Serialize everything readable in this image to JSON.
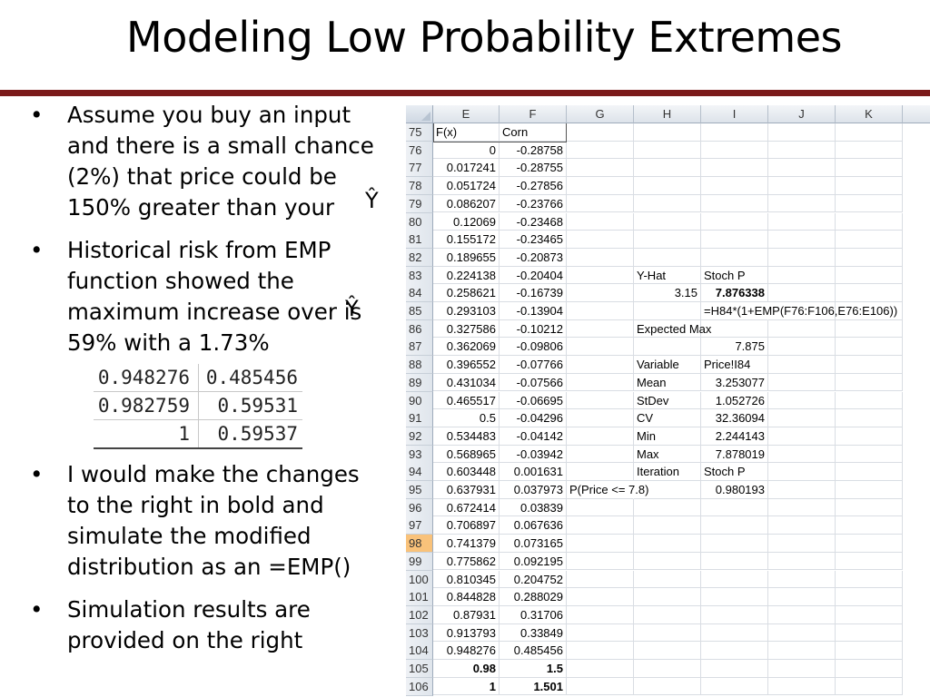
{
  "title": "Modeling Low Probability Extremes",
  "bullets": [
    {
      "text": "Assume you buy an input and there is a small chance (2%) that price could be 150% greater than your"
    },
    {
      "text": "Historical risk from EMP function showed the maximum increase over  is 59% with a 1.73%"
    },
    {
      "text": "I would make the changes to the right in bold and simulate the modified distribution as an =EMP()"
    },
    {
      "text": "Simulation results are provided on the right"
    }
  ],
  "yhat_symbol": "Ŷ",
  "mini_table": [
    [
      "0.948276",
      "0.485456"
    ],
    [
      "0.982759",
      "0.59531"
    ],
    [
      "1",
      "0.59537"
    ]
  ],
  "sheet": {
    "columns": [
      "E",
      "F",
      "G",
      "H",
      "I",
      "J",
      "K"
    ],
    "rows": [
      {
        "n": "75",
        "E": "F(x)",
        "F": "Corn",
        "G": "",
        "H": "",
        "I": ""
      },
      {
        "n": "76",
        "E": "0",
        "F": "-0.28758",
        "G": "",
        "H": "",
        "I": ""
      },
      {
        "n": "77",
        "E": "0.017241",
        "F": "-0.28755",
        "G": "",
        "H": "",
        "I": ""
      },
      {
        "n": "78",
        "E": "0.051724",
        "F": "-0.27856",
        "G": "",
        "H": "",
        "I": ""
      },
      {
        "n": "79",
        "E": "0.086207",
        "F": "-0.23766",
        "G": "",
        "H": "",
        "I": ""
      },
      {
        "n": "80",
        "E": "0.12069",
        "F": "-0.23468",
        "G": "",
        "H": "",
        "I": ""
      },
      {
        "n": "81",
        "E": "0.155172",
        "F": "-0.23465",
        "G": "",
        "H": "",
        "I": ""
      },
      {
        "n": "82",
        "E": "0.189655",
        "F": "-0.20873",
        "G": "",
        "H": "",
        "I": ""
      },
      {
        "n": "83",
        "E": "0.224138",
        "F": "-0.20404",
        "G": "",
        "H": "Y-Hat",
        "I": "Stoch P"
      },
      {
        "n": "84",
        "E": "0.258621",
        "F": "-0.16739",
        "G": "",
        "H": "3.15",
        "I": "7.876338"
      },
      {
        "n": "85",
        "E": "0.293103",
        "F": "-0.13904",
        "G": "",
        "H": "",
        "I": "=H84*(1+EMP(F76:F106,E76:E106))"
      },
      {
        "n": "86",
        "E": "0.327586",
        "F": "-0.10212",
        "G": "",
        "H": "Expected Max",
        "I": ""
      },
      {
        "n": "87",
        "E": "0.362069",
        "F": "-0.09806",
        "G": "",
        "H": "",
        "I": "7.875"
      },
      {
        "n": "88",
        "E": "0.396552",
        "F": "-0.07766",
        "G": "",
        "H": "Variable",
        "I": "Price!I84"
      },
      {
        "n": "89",
        "E": "0.431034",
        "F": "-0.07566",
        "G": "",
        "H": "Mean",
        "I": "3.253077"
      },
      {
        "n": "90",
        "E": "0.465517",
        "F": "-0.06695",
        "G": "",
        "H": "StDev",
        "I": "1.052726"
      },
      {
        "n": "91",
        "E": "0.5",
        "F": "-0.04296",
        "G": "",
        "H": "CV",
        "I": "32.36094"
      },
      {
        "n": "92",
        "E": "0.534483",
        "F": "-0.04142",
        "G": "",
        "H": "Min",
        "I": "2.244143"
      },
      {
        "n": "93",
        "E": "0.568965",
        "F": "-0.03942",
        "G": "",
        "H": "Max",
        "I": "7.878019"
      },
      {
        "n": "94",
        "E": "0.603448",
        "F": "0.001631",
        "G": "",
        "H": "Iteration",
        "I": "Stoch P"
      },
      {
        "n": "95",
        "E": "0.637931",
        "F": "0.037973",
        "G": "P(Price <= 7.8)",
        "H": "",
        "I": "0.980193"
      },
      {
        "n": "96",
        "E": "0.672414",
        "F": "0.03839",
        "G": "",
        "H": "",
        "I": ""
      },
      {
        "n": "97",
        "E": "0.706897",
        "F": "0.067636",
        "G": "",
        "H": "",
        "I": ""
      },
      {
        "n": "98",
        "E": "0.741379",
        "F": "0.073165",
        "G": "",
        "H": "",
        "I": ""
      },
      {
        "n": "99",
        "E": "0.775862",
        "F": "0.092195",
        "G": "",
        "H": "",
        "I": ""
      },
      {
        "n": "100",
        "E": "0.810345",
        "F": "0.204752",
        "G": "",
        "H": "",
        "I": ""
      },
      {
        "n": "101",
        "E": "0.844828",
        "F": "0.288029",
        "G": "",
        "H": "",
        "I": ""
      },
      {
        "n": "102",
        "E": "0.87931",
        "F": "0.31706",
        "G": "",
        "H": "",
        "I": ""
      },
      {
        "n": "103",
        "E": "0.913793",
        "F": "0.33849",
        "G": "",
        "H": "",
        "I": ""
      },
      {
        "n": "104",
        "E": "0.948276",
        "F": "0.485456",
        "G": "",
        "H": "",
        "I": ""
      },
      {
        "n": "105",
        "E": "0.98",
        "F": "1.5",
        "G": "",
        "H": "",
        "I": ""
      },
      {
        "n": "106",
        "E": "1",
        "F": "1.501",
        "G": "",
        "H": "",
        "I": ""
      }
    ],
    "selected_row": "98",
    "bold_rows": [
      "84",
      "105",
      "106"
    ],
    "colors": {
      "title_rule": "#7b1a1a",
      "selected_row_header": "#f9c27a"
    }
  }
}
